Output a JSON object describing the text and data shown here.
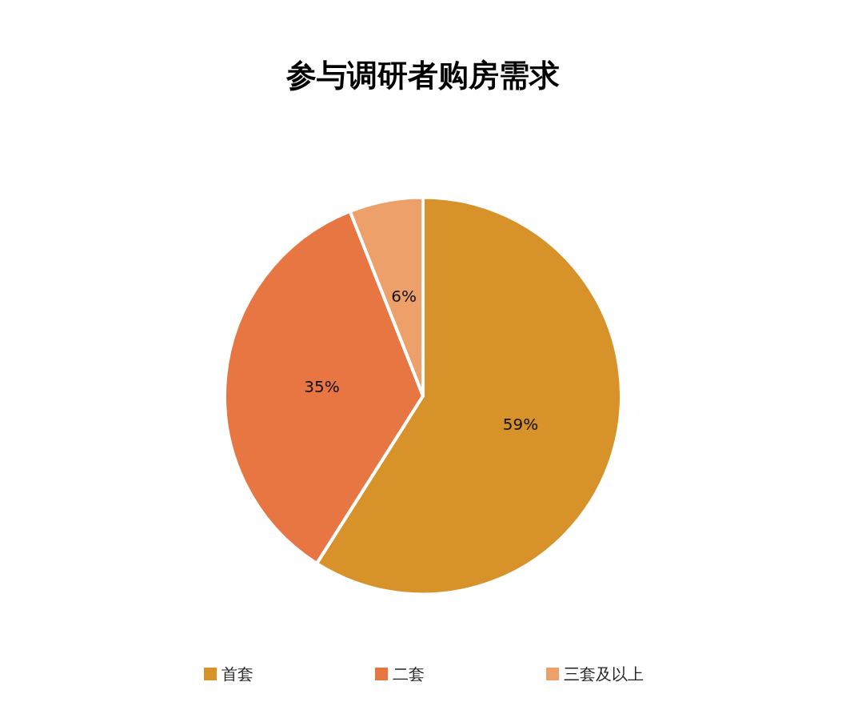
{
  "chart_data": {
    "type": "pie",
    "title": "参与调研者购房需求",
    "categories": [
      "首套",
      "二套",
      "三套及以上"
    ],
    "values": [
      59,
      35,
      6
    ],
    "colors": [
      "#d8922a",
      "#e87642",
      "#eda069"
    ],
    "value_labels": [
      "59%",
      "35%",
      "6%"
    ],
    "legend": "bottom"
  }
}
